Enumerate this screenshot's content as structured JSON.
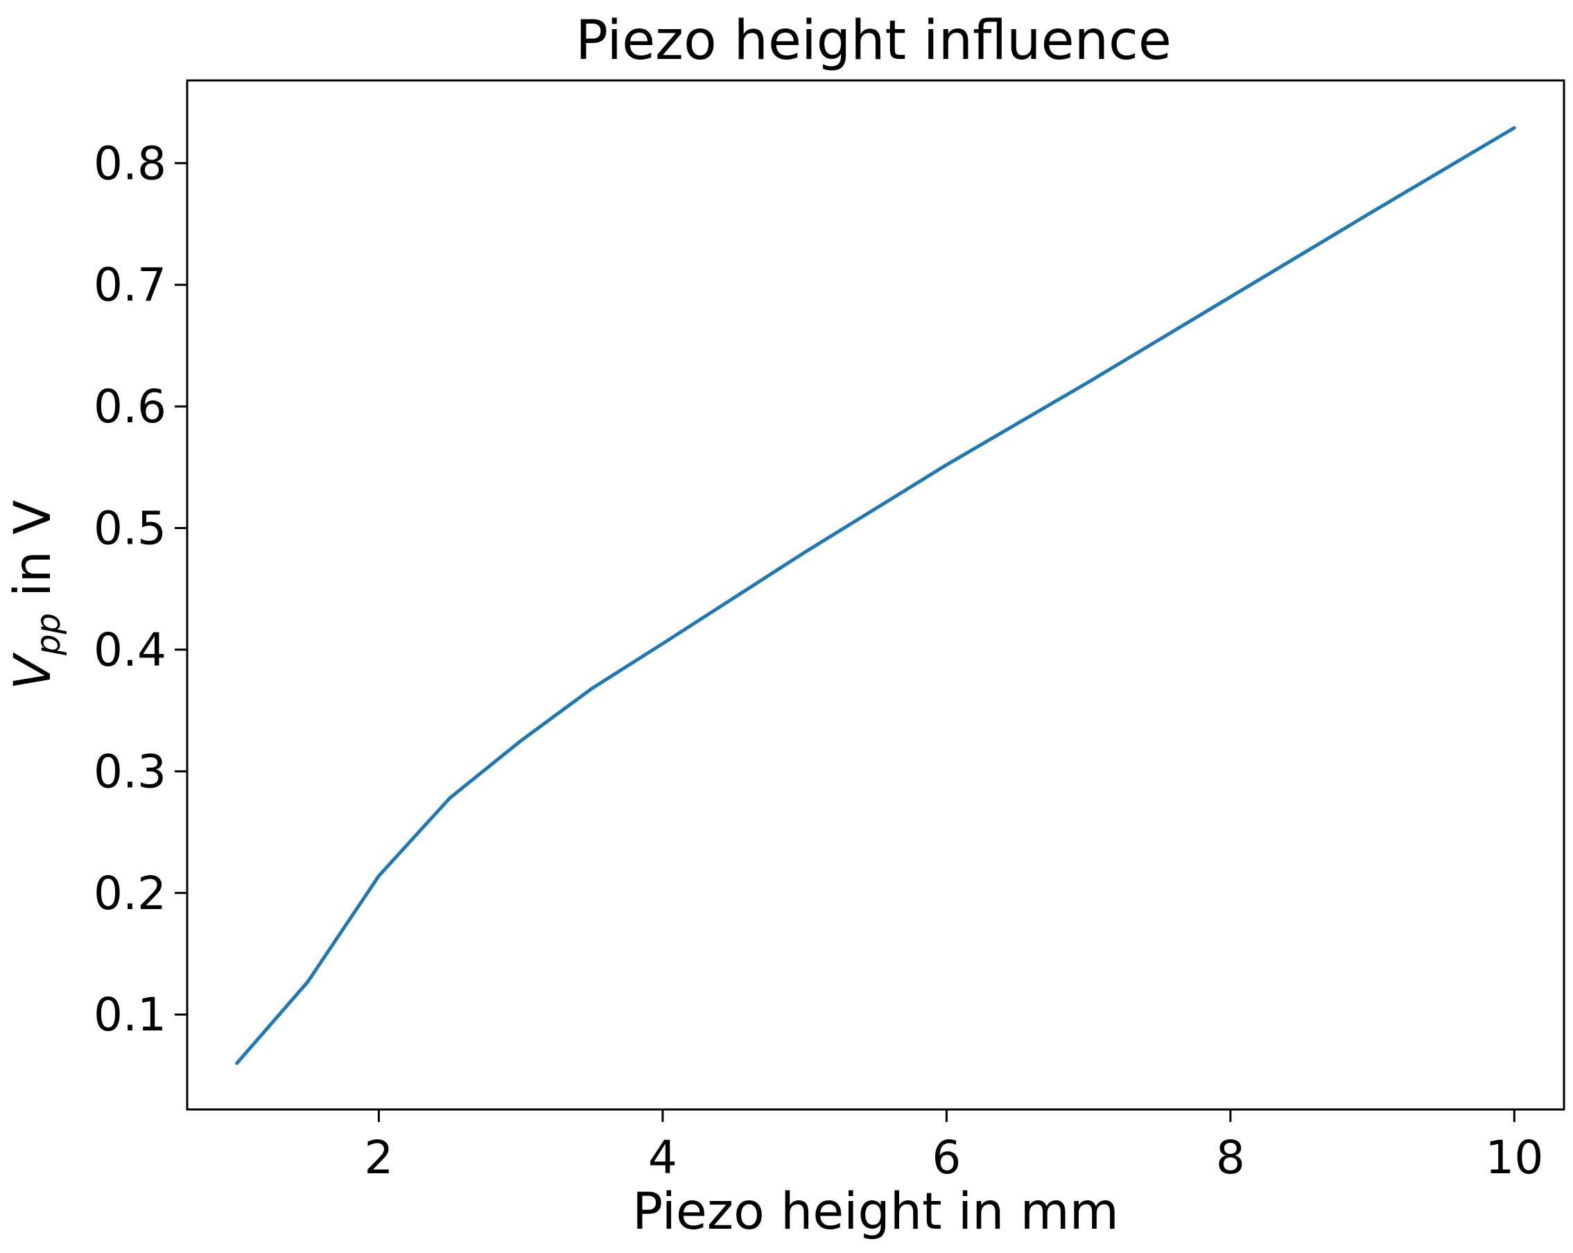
{
  "chart_data": {
    "type": "line",
    "title": "Piezo height influence",
    "xlabel": "Piezo height in mm",
    "ylabel_main": "V",
    "ylabel_sub": "pp",
    "ylabel_rest": " in V",
    "xlim": [
      0.65,
      10.35
    ],
    "ylim": [
      0.022,
      0.868
    ],
    "xticks": [
      2,
      4,
      6,
      8,
      10
    ],
    "xtick_labels": [
      "2",
      "4",
      "6",
      "8",
      "10"
    ],
    "yticks": [
      0.1,
      0.2,
      0.3,
      0.4,
      0.5,
      0.6,
      0.7,
      0.8
    ],
    "ytick_labels": [
      "0.1",
      "0.2",
      "0.3",
      "0.4",
      "0.5",
      "0.6",
      "0.7",
      "0.8"
    ],
    "grid": false,
    "series": [
      {
        "color": "#1f77b4",
        "x": [
          1.0,
          1.5,
          2.0,
          2.5,
          3.0,
          3.5,
          4.0,
          5.0,
          6.0,
          7.0,
          8.0,
          9.0,
          10.0
        ],
        "y": [
          0.06,
          0.127,
          0.214,
          0.278,
          0.325,
          0.368,
          0.405,
          0.48,
          0.552,
          0.62,
          0.69,
          0.76,
          0.829
        ]
      }
    ]
  }
}
